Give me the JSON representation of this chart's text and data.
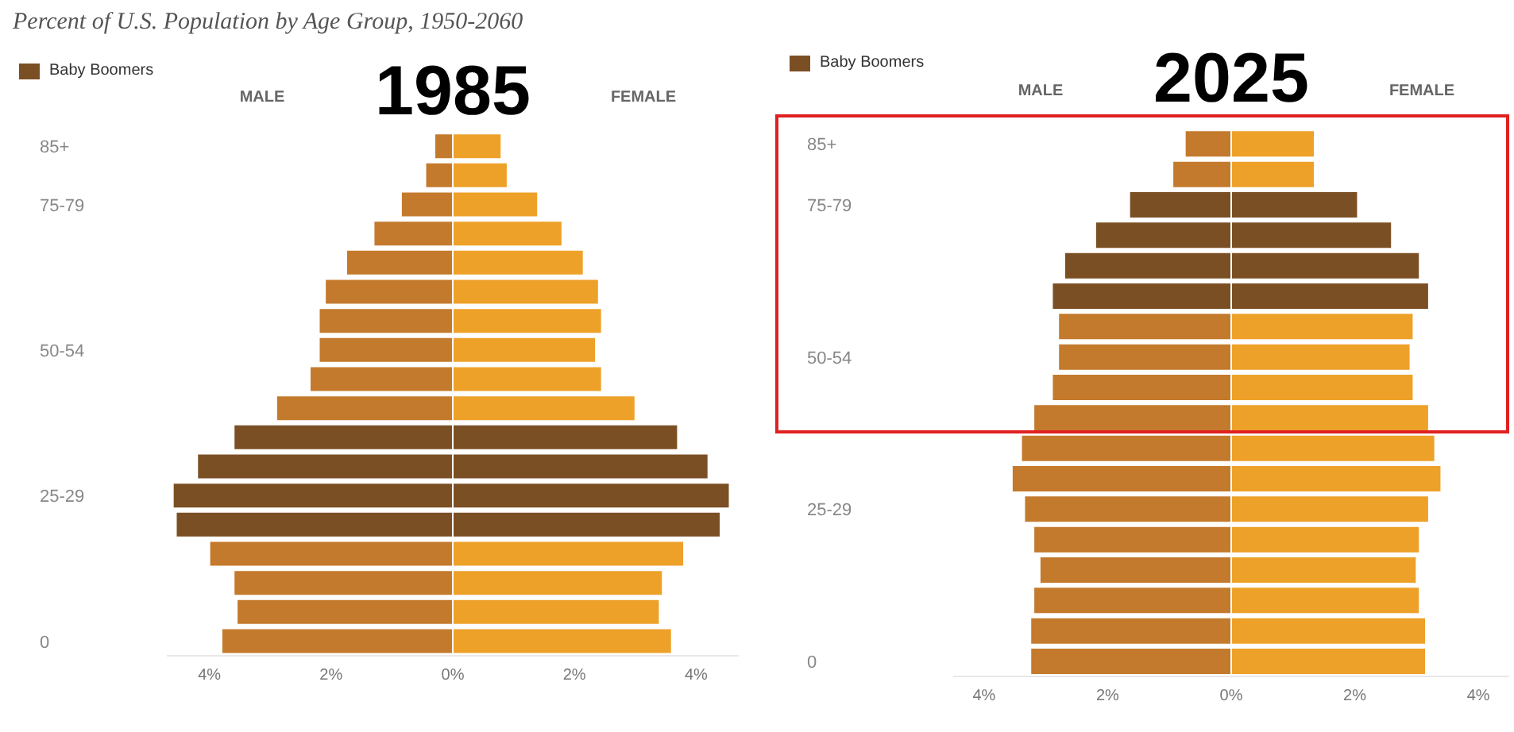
{
  "chart_data": [
    {
      "type": "bar",
      "orientation": "horizontal",
      "stacked": true,
      "title": "Percent of U.S. Population by Age Group, 1950-2060",
      "subtitle": "1985",
      "annotations": [
        "MALE",
        "FEMALE"
      ],
      "categories": [
        "85+",
        null,
        "75-79",
        null,
        null,
        null,
        null,
        "50-54",
        null,
        null,
        null,
        null,
        "25-29",
        null,
        null,
        null,
        null,
        "0"
      ],
      "xlim": [
        -4.7,
        4.7
      ],
      "xticks": [
        {
          "value": -4,
          "label": "4%"
        },
        {
          "value": -2,
          "label": "2%"
        },
        {
          "value": 0,
          "label": "0%"
        },
        {
          "value": 2,
          "label": "2%"
        },
        {
          "value": 4,
          "label": "4%"
        }
      ],
      "legend": "top left",
      "series": [
        {
          "color": "#c47a2c",
          "values": [
            -0.3,
            -0.45,
            -0.85,
            -1.3,
            -1.75,
            -2.1,
            -2.2,
            -2.2,
            -2.35,
            -2.9,
            null,
            null,
            null,
            null,
            -4.0,
            -3.6,
            -3.55,
            -3.8
          ]
        },
        {
          "color": "#eea129",
          "values": [
            0.8,
            0.9,
            1.4,
            1.8,
            2.15,
            2.4,
            2.45,
            2.35,
            2.45,
            3.0,
            null,
            null,
            null,
            null,
            3.8,
            3.45,
            3.4,
            3.6
          ]
        },
        {
          "name": "Baby Boomers",
          "color": "#7b4f24",
          "values": [
            null,
            null,
            null,
            null,
            null,
            null,
            null,
            null,
            null,
            null,
            -3.6,
            -4.2,
            -4.6,
            -4.55,
            null,
            null,
            null,
            null
          ]
        },
        {
          "color": "#7b4f24",
          "values": [
            null,
            null,
            null,
            null,
            null,
            null,
            null,
            null,
            null,
            null,
            3.7,
            4.2,
            4.55,
            4.4,
            null,
            null,
            null,
            null
          ]
        }
      ]
    },
    {
      "type": "bar",
      "orientation": "horizontal",
      "stacked": true,
      "subtitle": "2025",
      "annotations": [
        "MALE",
        "FEMALE"
      ],
      "categories": [
        "85+",
        null,
        "75-79",
        null,
        null,
        null,
        null,
        "50-54",
        null,
        null,
        null,
        null,
        "25-29",
        null,
        null,
        null,
        null,
        "0"
      ],
      "xlim": [
        -4.5,
        4.5
      ],
      "xticks": [
        {
          "value": -4,
          "label": "4%"
        },
        {
          "value": -2,
          "label": "2%"
        },
        {
          "value": 0,
          "label": "0%"
        },
        {
          "value": 2,
          "label": "2%"
        },
        {
          "value": 4,
          "label": "4%"
        }
      ],
      "legend": "top left",
      "series": [
        {
          "color": "#c47a2c",
          "values": [
            -0.75,
            -0.95,
            null,
            null,
            null,
            null,
            -2.8,
            -2.8,
            -2.9,
            -3.2,
            -3.4,
            -3.55,
            -3.35,
            -3.2,
            -3.1,
            -3.2,
            -3.25,
            -3.25
          ]
        },
        {
          "color": "#eea129",
          "values": [
            1.35,
            1.35,
            null,
            null,
            null,
            null,
            2.95,
            2.9,
            2.95,
            3.2,
            3.3,
            3.4,
            3.2,
            3.05,
            3.0,
            3.05,
            3.15,
            3.15
          ]
        },
        {
          "name": "Baby Boomers",
          "color": "#7b4f24",
          "values": [
            null,
            null,
            -1.65,
            -2.2,
            -2.7,
            -2.9,
            null,
            null,
            null,
            null,
            null,
            null,
            null,
            null,
            null,
            null,
            null,
            null
          ]
        },
        {
          "color": "#7b4f24",
          "values": [
            null,
            null,
            2.05,
            2.6,
            3.05,
            3.2,
            null,
            null,
            null,
            null,
            null,
            null,
            null,
            null,
            null,
            null,
            null,
            null
          ]
        }
      ]
    }
  ]
}
